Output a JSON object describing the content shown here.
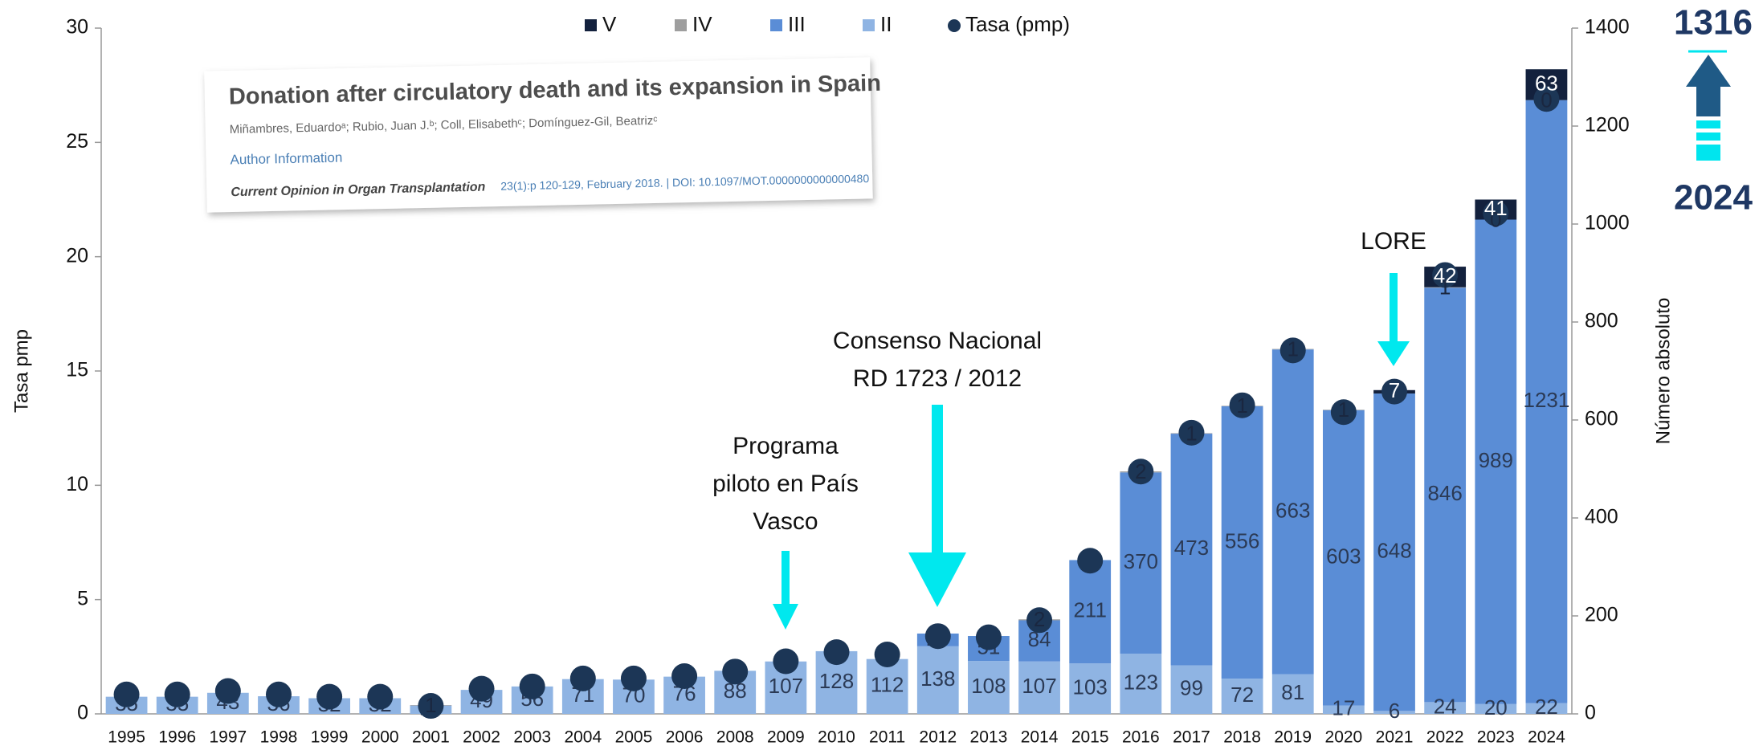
{
  "chart_data": {
    "type": "bar",
    "y_label": "Tasa pmp",
    "y2_label": "Número absoluto",
    "categories": [
      "1995",
      "1996",
      "1997",
      "1998",
      "1999",
      "2000",
      "2001",
      "2002",
      "2003",
      "2004",
      "2005",
      "2006",
      "2008",
      "2009",
      "2010",
      "2011",
      "2012",
      "2013",
      "2014",
      "2015",
      "2016",
      "2017",
      "2018",
      "2019",
      "2020",
      "2021",
      "2022",
      "2023",
      "2024"
    ],
    "ylim": [
      0,
      30
    ],
    "yticks": [
      0,
      5,
      10,
      15,
      20,
      25,
      30
    ],
    "y2lim": [
      0,
      1400
    ],
    "y2ticks": [
      0,
      200,
      400,
      600,
      800,
      1000,
      1200,
      1400
    ],
    "series": [
      {
        "name": "II",
        "color": "#8fb4e3",
        "axis": "y2",
        "values": [
          35,
          35,
          43,
          36,
          32,
          32,
          17,
          49,
          56,
          71,
          70,
          76,
          88,
          107,
          128,
          112,
          138,
          108,
          107,
          103,
          123,
          99,
          72,
          81,
          17,
          6,
          24,
          20,
          22
        ]
      },
      {
        "name": "III",
        "color": "#5a8dd6",
        "axis": "y2",
        "values": [
          null,
          null,
          null,
          null,
          null,
          null,
          null,
          null,
          null,
          null,
          null,
          null,
          null,
          null,
          null,
          null,
          26,
          51,
          84,
          211,
          370,
          473,
          556,
          663,
          603,
          648,
          846,
          989,
          1231
        ]
      },
      {
        "name": "IV",
        "color": "#9e9e9e",
        "axis": "y2",
        "values": [
          null,
          null,
          null,
          null,
          null,
          null,
          1,
          null,
          null,
          null,
          null,
          null,
          null,
          null,
          null,
          null,
          null,
          null,
          2,
          null,
          2,
          1,
          1,
          1,
          1,
          null,
          1,
          0,
          0
        ]
      },
      {
        "name": "V",
        "color": "#13213d",
        "axis": "y2",
        "values": [
          null,
          null,
          null,
          null,
          null,
          null,
          null,
          null,
          null,
          null,
          null,
          null,
          null,
          null,
          null,
          null,
          null,
          null,
          null,
          null,
          null,
          null,
          null,
          null,
          null,
          7,
          42,
          41,
          63
        ]
      },
      {
        "name": "Tasa (pmp)",
        "color": "#1c3656",
        "type": "scatter",
        "axis": "y",
        "values": [
          0.85,
          0.85,
          1.0,
          0.85,
          0.75,
          0.75,
          0.35,
          1.1,
          1.2,
          1.55,
          1.55,
          1.65,
          1.85,
          2.3,
          2.7,
          2.6,
          3.4,
          3.35,
          4.1,
          6.7,
          10.6,
          12.3,
          13.5,
          15.9,
          13.2,
          14.1,
          19.2,
          21.9,
          26.9
        ]
      }
    ],
    "annotations": [
      {
        "lines": [
          "Programa",
          "piloto en País",
          "Vasco"
        ]
      },
      {
        "lines": [
          "Consenso Nacional",
          "RD 1723 / 2012"
        ]
      },
      {
        "lines": [
          "LORE"
        ]
      }
    ],
    "highlight": {
      "value": "1316",
      "year": "2024"
    },
    "inset": {
      "title": "Donation after circulatory death and its expansion in Spain",
      "authors": "Miñambres, Eduardoᵃ; Rubio, Juan J.ᵇ; Coll, Elisabethᶜ; Domínguez-Gil, Beatrizᶜ",
      "link": "Author Information",
      "citation": "Current Opinion in Organ Transplantation",
      "details": "23(1):p 120-129, February 2018. | DOI: 10.1097/MOT.0000000000000480"
    }
  }
}
